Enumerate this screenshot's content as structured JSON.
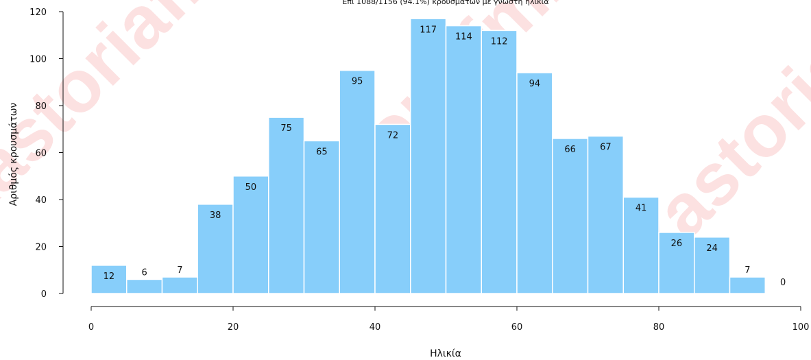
{
  "chart_data": {
    "type": "bar",
    "title": "",
    "subtitle": "Επί 1088/1156 (94.1%) κρουσμάτων με γνωστή ηλικία",
    "xlabel": "Ηλικία",
    "ylabel": "Αριθμός κρουσμάτων",
    "xlim": [
      0,
      100
    ],
    "ylim": [
      0,
      120
    ],
    "x_ticks": [
      0,
      20,
      40,
      60,
      80,
      100
    ],
    "y_ticks": [
      0,
      20,
      40,
      60,
      80,
      100,
      120
    ],
    "bin_width": 5,
    "bin_starts": [
      0,
      5,
      10,
      15,
      20,
      25,
      30,
      35,
      40,
      45,
      50,
      55,
      60,
      65,
      70,
      75,
      80,
      85,
      90,
      95
    ],
    "values": [
      12,
      6,
      7,
      38,
      50,
      75,
      65,
      95,
      72,
      117,
      114,
      112,
      94,
      66,
      67,
      41,
      26,
      24,
      7,
      0
    ],
    "bar_color": "#87CEFA",
    "grid": false,
    "legend": "none"
  },
  "watermark": {
    "text": "kastoriafm.gr",
    "color": "#f05050"
  }
}
